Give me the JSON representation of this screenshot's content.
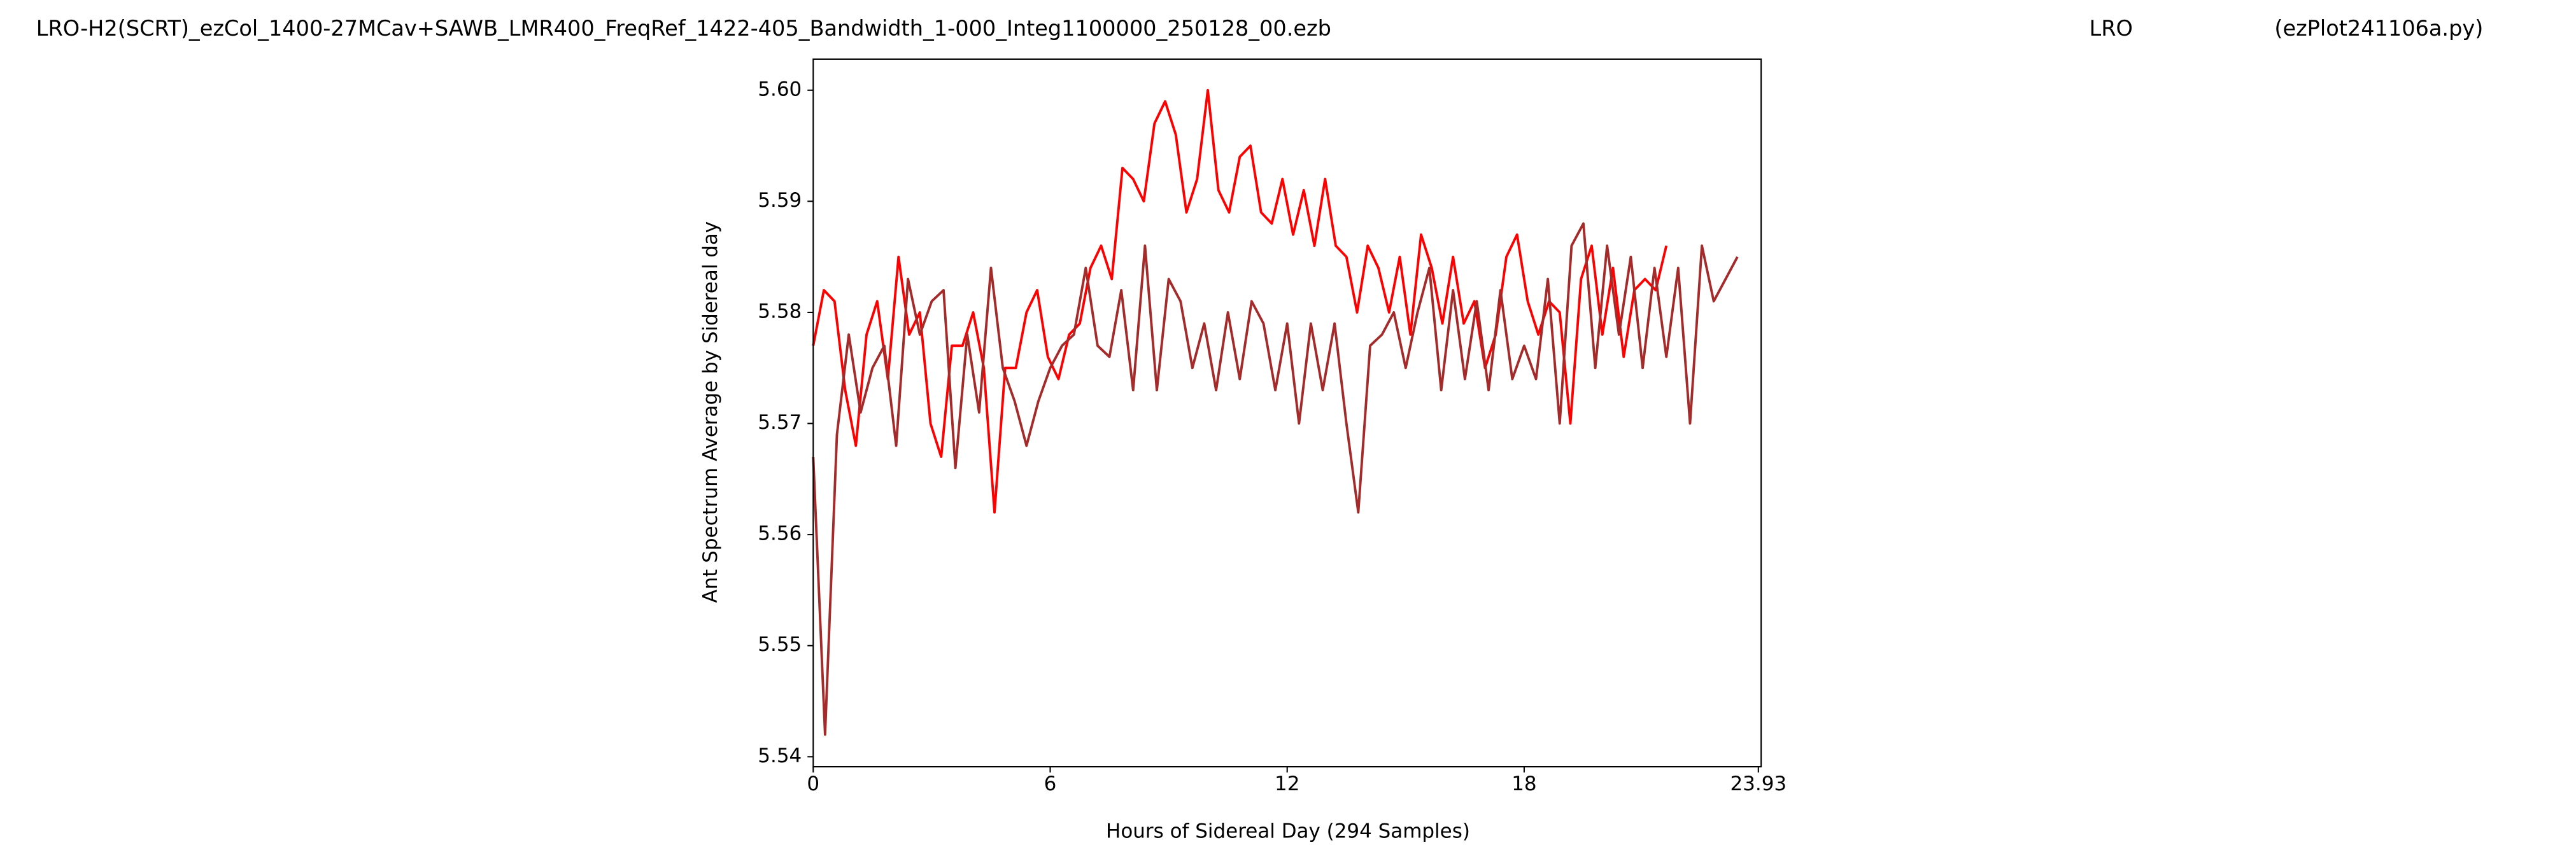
{
  "chart_data": {
    "type": "line",
    "title": "LRO-H2(SCRT)_ezCol_1400-27MCav+SAWB_LMR400_FreqRef_1422-405_Bandwidth_1-000_Integ1100000_250128_00.ezb",
    "site": "LRO",
    "program": "(ezPlot241106a.py)",
    "xlabel": "Hours of Sidereal Day  (294 Samples)",
    "ylabel": "Ant Spectrum Average by Sidereal day",
    "xlim": [
      0,
      24
    ],
    "xticks": [
      0,
      6,
      12,
      18,
      23.93
    ],
    "ylim": [
      5.5391,
      5.6028
    ],
    "yticks": [
      5.54,
      5.55,
      5.56,
      5.57,
      5.58,
      5.59,
      {
        "value": 5.6,
        "label": "5.60"
      }
    ],
    "series": [
      {
        "color": "#ff0000",
        "x": [
          0,
          0.27,
          0.54,
          0.81,
          1.08,
          1.35,
          1.62,
          1.89,
          2.16,
          2.43,
          2.7,
          2.97,
          3.24,
          3.51,
          3.78,
          4.05,
          4.32,
          4.59,
          4.86,
          5.13,
          5.4,
          5.67,
          5.94,
          6.21,
          6.48,
          6.75,
          7.02,
          7.29,
          7.56,
          7.83,
          8.1,
          8.37,
          8.64,
          8.91,
          9.18,
          9.45,
          9.72,
          9.99,
          10.26,
          10.53,
          10.8,
          11.07,
          11.34,
          11.61,
          11.88,
          12.15,
          12.42,
          12.69,
          12.96,
          13.23,
          13.5,
          13.77,
          14.04,
          14.31,
          14.58,
          14.85,
          15.12,
          15.39,
          15.66,
          15.93,
          16.2,
          16.47,
          16.74,
          17.01,
          17.28,
          17.55,
          17.82,
          18.09,
          18.36,
          18.63,
          18.9,
          19.17,
          19.44,
          19.71,
          19.98,
          20.25,
          20.52,
          20.79,
          21.06,
          21.33,
          21.6
        ],
        "values": [
          5.577,
          5.582,
          5.581,
          5.573,
          5.568,
          5.578,
          5.581,
          5.574,
          5.585,
          5.578,
          5.58,
          5.57,
          5.567,
          5.577,
          5.577,
          5.58,
          5.575,
          5.562,
          5.575,
          5.575,
          5.58,
          5.582,
          5.576,
          5.574,
          5.578,
          5.579,
          5.584,
          5.586,
          5.583,
          5.593,
          5.592,
          5.59,
          5.597,
          5.599,
          5.596,
          5.589,
          5.592,
          5.6,
          5.591,
          5.589,
          5.594,
          5.595,
          5.589,
          5.588,
          5.592,
          5.587,
          5.591,
          5.586,
          5.592,
          5.586,
          5.585,
          5.58,
          5.586,
          5.584,
          5.58,
          5.585,
          5.578,
          5.587,
          5.584,
          5.579,
          5.585,
          5.579,
          5.581,
          5.575,
          5.578,
          5.585,
          5.587,
          5.581,
          5.578,
          5.581,
          5.58,
          5.57,
          5.583,
          5.586,
          5.578,
          5.584,
          5.576,
          5.582,
          5.583,
          5.582,
          5.586
        ]
      },
      {
        "color": "#a52a2a",
        "x": [
          0,
          0.3,
          0.6,
          0.9,
          1.2,
          1.5,
          1.8,
          2.1,
          2.4,
          2.7,
          3,
          3.3,
          3.6,
          3.9,
          4.2,
          4.5,
          4.8,
          5.1,
          5.4,
          5.7,
          6,
          6.3,
          6.6,
          6.9,
          7.2,
          7.5,
          7.8,
          8.1,
          8.4,
          8.7,
          9,
          9.3,
          9.6,
          9.9,
          10.2,
          10.5,
          10.8,
          11.1,
          11.4,
          11.7,
          12,
          12.3,
          12.6,
          12.9,
          13.2,
          13.5,
          13.8,
          14.1,
          14.4,
          14.7,
          15,
          15.3,
          15.6,
          15.9,
          16.2,
          16.5,
          16.8,
          17.1,
          17.4,
          17.7,
          18,
          18.3,
          18.6,
          18.9,
          19.2,
          19.5,
          19.8,
          20.1,
          20.4,
          20.7,
          21,
          21.3,
          21.6,
          21.9,
          22.2,
          22.5,
          22.8,
          23.1,
          23.4
        ],
        "values": [
          5.567,
          5.542,
          5.569,
          5.578,
          5.571,
          5.575,
          5.577,
          5.568,
          5.583,
          5.578,
          5.581,
          5.582,
          5.566,
          5.578,
          5.571,
          5.584,
          5.575,
          5.572,
          5.568,
          5.572,
          5.575,
          5.577,
          5.578,
          5.584,
          5.577,
          5.576,
          5.582,
          5.573,
          5.586,
          5.573,
          5.583,
          5.581,
          5.575,
          5.579,
          5.573,
          5.58,
          5.574,
          5.581,
          5.579,
          5.573,
          5.579,
          5.57,
          5.579,
          5.573,
          5.579,
          5.57,
          5.562,
          5.577,
          5.578,
          5.58,
          5.575,
          5.58,
          5.584,
          5.573,
          5.582,
          5.574,
          5.581,
          5.573,
          5.582,
          5.574,
          5.577,
          5.574,
          5.583,
          5.57,
          5.586,
          5.588,
          5.575,
          5.586,
          5.578,
          5.585,
          5.575,
          5.584,
          5.576,
          5.584,
          5.57,
          5.586,
          5.581,
          5.583,
          5.585
        ]
      }
    ]
  }
}
